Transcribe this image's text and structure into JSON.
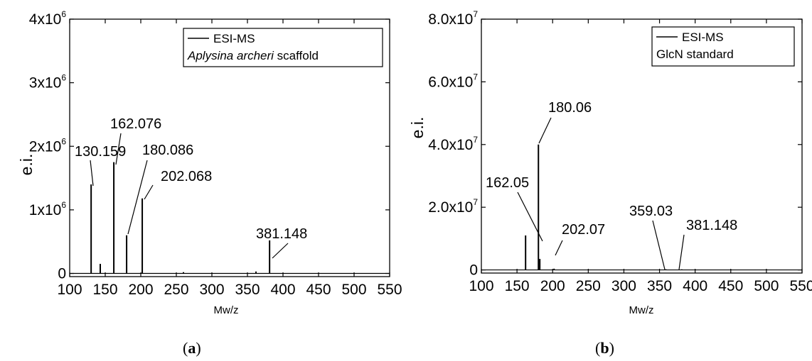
{
  "chart_data": [
    {
      "type": "line",
      "panel": "a",
      "caption": "a",
      "xlabel": "Mw/z",
      "ylabel": "e.i.",
      "xlim": [
        100,
        550
      ],
      "ylim": [
        -50000,
        4000000
      ],
      "x_ticks": [
        100,
        150,
        200,
        250,
        300,
        350,
        400,
        450,
        500,
        550
      ],
      "y_ticks": [
        {
          "value": 0,
          "mantissa": "0",
          "exp": ""
        },
        {
          "value": 1000000,
          "mantissa": "1x10",
          "exp": "6"
        },
        {
          "value": 2000000,
          "mantissa": "2x10",
          "exp": "6"
        },
        {
          "value": 3000000,
          "mantissa": "3x10",
          "exp": "6"
        },
        {
          "value": 4000000,
          "mantissa": "4x10",
          "exp": "6"
        }
      ],
      "legend": {
        "line": "ESI-MS",
        "sample_italic": "Aplysina archeri",
        "sample_rest": " scaffold",
        "position": "top-right"
      },
      "series": [
        {
          "name": "ESI-MS",
          "peaks": [
            {
              "x": 130.159,
              "y": 1400000
            },
            {
              "x": 143.0,
              "y": 150000
            },
            {
              "x": 162.076,
              "y": 1750000
            },
            {
              "x": 180.086,
              "y": 600000
            },
            {
              "x": 202.068,
              "y": 1180000
            },
            {
              "x": 260.0,
              "y": 20000
            },
            {
              "x": 362.0,
              "y": 30000
            },
            {
              "x": 381.148,
              "y": 520000
            }
          ]
        }
      ],
      "annotations": [
        {
          "text": "130.159",
          "x": 130.159,
          "y": 1400000
        },
        {
          "text": "162.076",
          "x": 162.076,
          "y": 1750000
        },
        {
          "text": "180.086",
          "x": 180.086,
          "y": 600000
        },
        {
          "text": "202.068",
          "x": 202.068,
          "y": 1180000
        },
        {
          "text": "381.148",
          "x": 381.148,
          "y": 520000
        }
      ]
    },
    {
      "type": "line",
      "panel": "b",
      "caption": "b",
      "xlabel": "Mw/z",
      "ylabel": "e.i.",
      "xlim": [
        100,
        550
      ],
      "ylim": [
        -1000000,
        80000000
      ],
      "x_ticks": [
        100,
        150,
        200,
        250,
        300,
        350,
        400,
        450,
        500,
        550
      ],
      "y_ticks": [
        {
          "value": 0,
          "mantissa": "0",
          "exp": ""
        },
        {
          "value": 20000000,
          "mantissa": "2.0x10",
          "exp": "7"
        },
        {
          "value": 40000000,
          "mantissa": "4.0x10",
          "exp": "7"
        },
        {
          "value": 60000000,
          "mantissa": "6.0x10",
          "exp": "7"
        },
        {
          "value": 80000000,
          "mantissa": "8.0x10",
          "exp": "7"
        }
      ],
      "legend": {
        "line": "ESI-MS",
        "sample_italic": "",
        "sample_rest": "GlcN standard",
        "position": "top-right"
      },
      "series": [
        {
          "name": "ESI-MS",
          "peaks": [
            {
              "x": 162.05,
              "y": 11000000
            },
            {
              "x": 180.06,
              "y": 40000000
            },
            {
              "x": 182.0,
              "y": 3500000
            },
            {
              "x": 202.07,
              "y": 400000
            },
            {
              "x": 359.03,
              "y": 200000
            },
            {
              "x": 381.148,
              "y": 200000
            }
          ]
        }
      ],
      "annotations": [
        {
          "text": "162.05",
          "x": 162.05,
          "y": 11000000
        },
        {
          "text": "180.06",
          "x": 180.06,
          "y": 40000000
        },
        {
          "text": "202.07",
          "x": 202.07,
          "y": 400000
        },
        {
          "text": "359.03",
          "x": 359.03,
          "y": 200000
        },
        {
          "text": "381.148",
          "x": 381.148,
          "y": 200000
        }
      ]
    }
  ]
}
